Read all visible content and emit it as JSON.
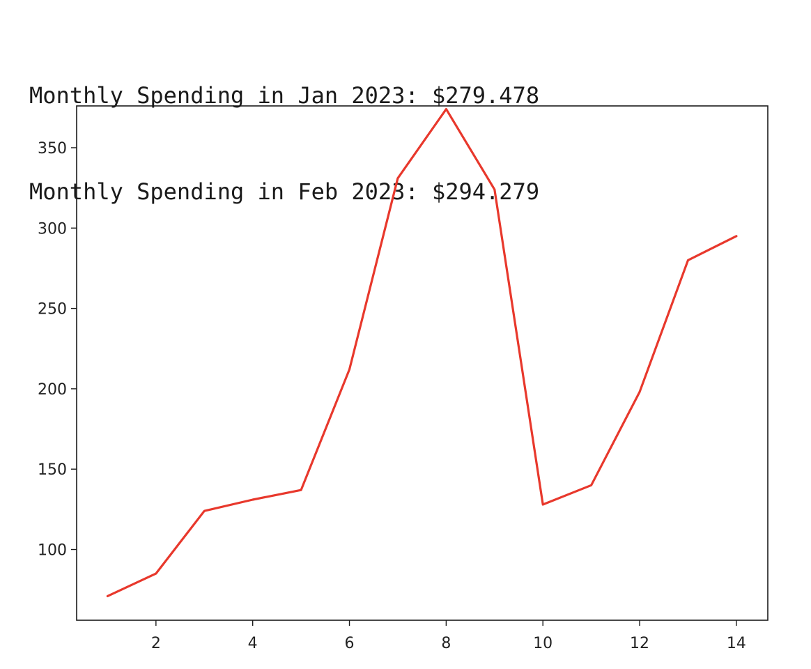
{
  "output": {
    "lines": [
      "Monthly Spending in Jan 2023: $279.478",
      "Monthly Spending in Feb 2023: $294.279"
    ]
  },
  "chart_data": {
    "type": "line",
    "title": "",
    "xlabel": "",
    "ylabel": "",
    "x": [
      1,
      2,
      3,
      4,
      5,
      6,
      7,
      8,
      9,
      10,
      11,
      12,
      13,
      14
    ],
    "series": [
      {
        "color": "#e8382c",
        "values": [
          71,
          85,
          124,
          131,
          137,
          212,
          331,
          374,
          324,
          128,
          140,
          198,
          280,
          295
        ]
      }
    ],
    "xlim": [
      0.36,
      14.65
    ],
    "ylim": [
      56,
      376
    ],
    "xticks": [
      2,
      4,
      6,
      8,
      10,
      12,
      14
    ],
    "yticks": [
      100,
      150,
      200,
      250,
      300,
      350
    ],
    "grid": false,
    "legend": "none"
  }
}
